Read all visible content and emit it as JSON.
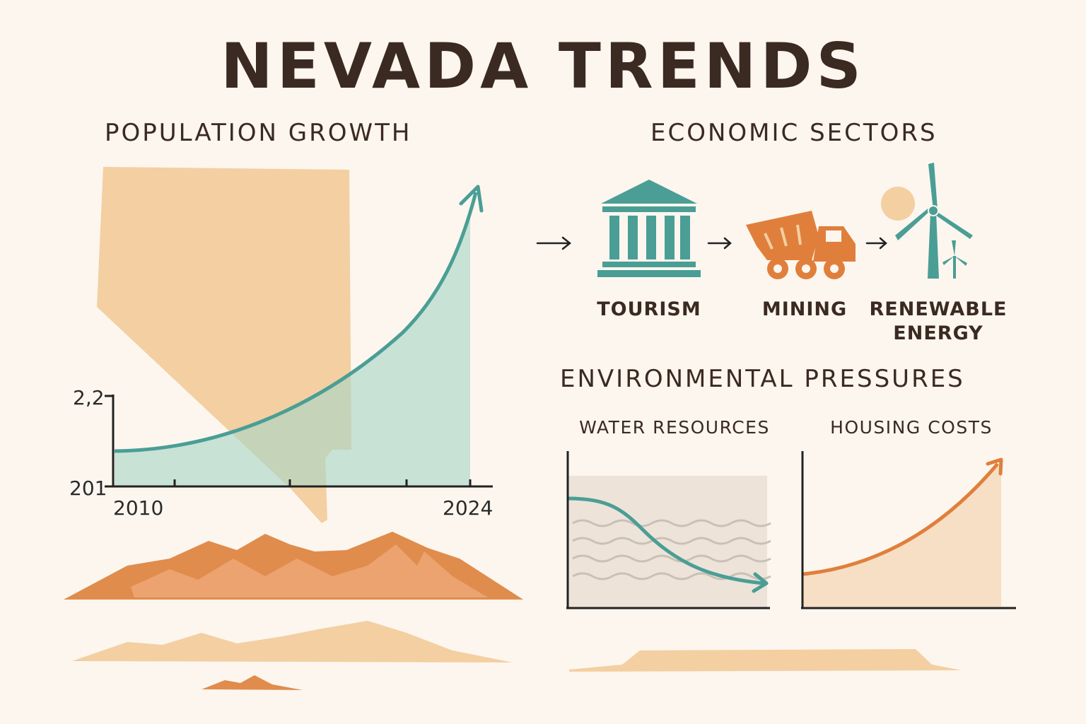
{
  "title": "NEVADA TRENDS",
  "population": {
    "heading": "POPULATION GROWTH",
    "y_top_label": "2,2",
    "y_bottom_label": "201",
    "x_start_label": "2010",
    "x_end_label": "2024"
  },
  "economy": {
    "heading": "ECONOMIC SECTORS",
    "sectors": [
      {
        "label": "TOURISM",
        "icon": "bank-building-icon"
      },
      {
        "label": "MINING",
        "icon": "dump-truck-icon"
      },
      {
        "label": "RENEWABLE",
        "label2": "ENERGY",
        "icon": "wind-turbine-icon"
      }
    ],
    "arrow": "→"
  },
  "environment": {
    "heading": "ENVIRONMENTAL PRESSURES",
    "water": {
      "label": "WATER RESOURCES",
      "trend": "decreasing"
    },
    "housing": {
      "label": "HOUSING COSTS",
      "trend": "increasing"
    }
  },
  "colors": {
    "teal": "#4a9e95",
    "teal_fill": "#c9e2d8",
    "sand": "#f3cfa2",
    "orange": "#e07f3c",
    "dark": "#3b2a21"
  }
}
